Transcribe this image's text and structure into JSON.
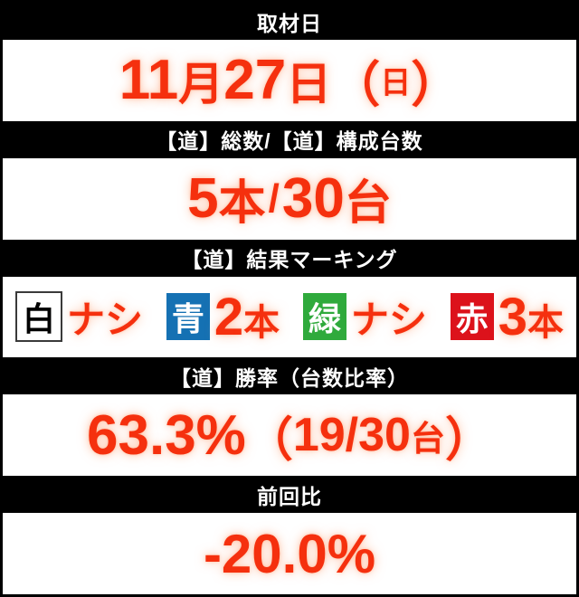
{
  "colors": {
    "accent_red_text": "#f5300e",
    "header_bg": "#000000",
    "header_text": "#ffffff",
    "box_blue": "#1571b3",
    "box_green": "#2faa3c",
    "box_red": "#dc121b",
    "box_white": "#ffffff"
  },
  "sections": {
    "survey_date": {
      "header": "取材日",
      "value": {
        "month": "11",
        "month_unit": "月",
        "day": "27",
        "day_unit": "日",
        "paren_open": "（",
        "weekday": "日",
        "paren_close": "）"
      }
    },
    "total_count": {
      "header": "【道】総数/【道】構成台数",
      "value": {
        "num1": "5",
        "unit1": "本",
        "slash": "/",
        "num2": "30",
        "unit2": "台"
      }
    },
    "result_marking": {
      "header": "【道】結果マーキング",
      "markings": [
        {
          "label": "白",
          "box_color": "#ffffff",
          "result": "ナシ"
        },
        {
          "label": "青",
          "box_color": "#1571b3",
          "count": "2",
          "unit": "本"
        },
        {
          "label": "緑",
          "box_color": "#2faa3c",
          "result": "ナシ"
        },
        {
          "label": "赤",
          "box_color": "#dc121b",
          "count": "3",
          "unit": "本"
        }
      ]
    },
    "win_rate": {
      "header": "【道】勝率（台数比率）",
      "value": {
        "main": "63.3%",
        "paren_open": "（",
        "fraction": "19/30",
        "unit": "台",
        "paren_close": "）"
      }
    },
    "prev_ratio": {
      "header": "前回比",
      "value": "-20.0%"
    }
  }
}
